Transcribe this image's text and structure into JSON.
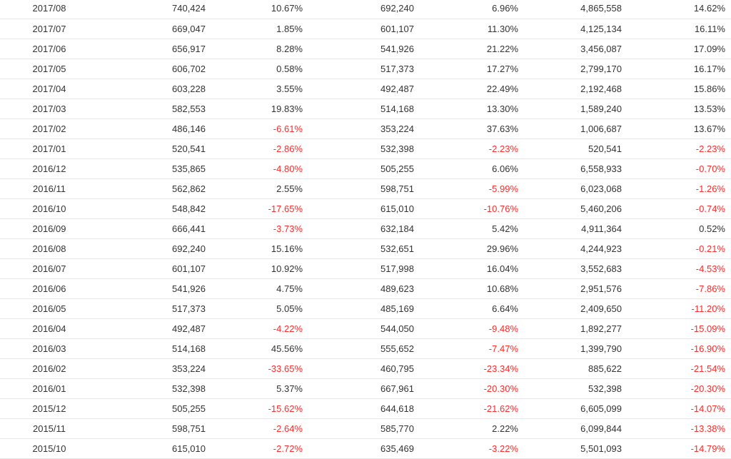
{
  "table": {
    "rows": [
      [
        "2017/08",
        "740,424",
        "10.67%",
        "692,240",
        "6.96%",
        "4,865,558",
        "14.62%"
      ],
      [
        "2017/07",
        "669,047",
        "1.85%",
        "601,107",
        "11.30%",
        "4,125,134",
        "16.11%"
      ],
      [
        "2017/06",
        "656,917",
        "8.28%",
        "541,926",
        "21.22%",
        "3,456,087",
        "17.09%"
      ],
      [
        "2017/05",
        "606,702",
        "0.58%",
        "517,373",
        "17.27%",
        "2,799,170",
        "16.17%"
      ],
      [
        "2017/04",
        "603,228",
        "3.55%",
        "492,487",
        "22.49%",
        "2,192,468",
        "15.86%"
      ],
      [
        "2017/03",
        "582,553",
        "19.83%",
        "514,168",
        "13.30%",
        "1,589,240",
        "13.53%"
      ],
      [
        "2017/02",
        "486,146",
        "-6.61%",
        "353,224",
        "37.63%",
        "1,006,687",
        "13.67%"
      ],
      [
        "2017/01",
        "520,541",
        "-2.86%",
        "532,398",
        "-2.23%",
        "520,541",
        "-2.23%"
      ],
      [
        "2016/12",
        "535,865",
        "-4.80%",
        "505,255",
        "6.06%",
        "6,558,933",
        "-0.70%"
      ],
      [
        "2016/11",
        "562,862",
        "2.55%",
        "598,751",
        "-5.99%",
        "6,023,068",
        "-1.26%"
      ],
      [
        "2016/10",
        "548,842",
        "-17.65%",
        "615,010",
        "-10.76%",
        "5,460,206",
        "-0.74%"
      ],
      [
        "2016/09",
        "666,441",
        "-3.73%",
        "632,184",
        "5.42%",
        "4,911,364",
        "0.52%"
      ],
      [
        "2016/08",
        "692,240",
        "15.16%",
        "532,651",
        "29.96%",
        "4,244,923",
        "-0.21%"
      ],
      [
        "2016/07",
        "601,107",
        "10.92%",
        "517,998",
        "16.04%",
        "3,552,683",
        "-4.53%"
      ],
      [
        "2016/06",
        "541,926",
        "4.75%",
        "489,623",
        "10.68%",
        "2,951,576",
        "-7.86%"
      ],
      [
        "2016/05",
        "517,373",
        "5.05%",
        "485,169",
        "6.64%",
        "2,409,650",
        "-11.20%"
      ],
      [
        "2016/04",
        "492,487",
        "-4.22%",
        "544,050",
        "-9.48%",
        "1,892,277",
        "-15.09%"
      ],
      [
        "2016/03",
        "514,168",
        "45.56%",
        "555,652",
        "-7.47%",
        "1,399,790",
        "-16.90%"
      ],
      [
        "2016/02",
        "353,224",
        "-33.65%",
        "460,795",
        "-23.34%",
        "885,622",
        "-21.54%"
      ],
      [
        "2016/01",
        "532,398",
        "5.37%",
        "667,961",
        "-20.30%",
        "532,398",
        "-20.30%"
      ],
      [
        "2015/12",
        "505,255",
        "-15.62%",
        "644,618",
        "-21.62%",
        "6,605,099",
        "-14.07%"
      ],
      [
        "2015/11",
        "598,751",
        "-2.64%",
        "585,770",
        "2.22%",
        "6,099,844",
        "-13.38%"
      ],
      [
        "2015/10",
        "615,010",
        "-2.72%",
        "635,469",
        "-3.22%",
        "5,501,093",
        "-14.79%"
      ]
    ]
  },
  "colors": {
    "text": "#333333",
    "negative": "#ff2b2b",
    "row_border": "#e6e6e6",
    "background": "#ffffff"
  }
}
